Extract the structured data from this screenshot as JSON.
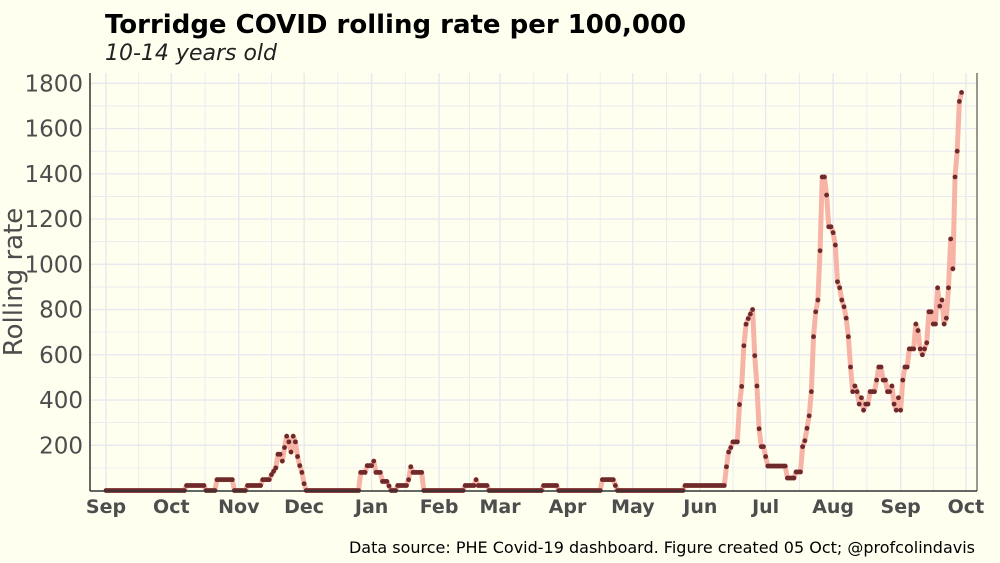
{
  "chart_data": {
    "type": "line",
    "title": "Torridge  COVID rolling rate per 100,000",
    "subtitle": "10-14 years old",
    "xlabel": "",
    "ylabel": "Rolling rate",
    "caption": "Data source: PHE Covid-19 dashboard. Figure created 05 Oct; @profcolindavis",
    "x_unit": "days since 1 Sep 2020",
    "xlim": [
      0,
      400
    ],
    "ylim": [
      0,
      1800
    ],
    "yticks": [
      200,
      400,
      600,
      800,
      1000,
      1200,
      1400,
      1600,
      1800
    ],
    "xticks": [
      {
        "label": "Sep",
        "day": 0
      },
      {
        "label": "Oct",
        "day": 30
      },
      {
        "label": "Nov",
        "day": 61
      },
      {
        "label": "Dec",
        "day": 91
      },
      {
        "label": "Jan",
        "day": 122
      },
      {
        "label": "Feb",
        "day": 153
      },
      {
        "label": "Mar",
        "day": 181
      },
      {
        "label": "Apr",
        "day": 212
      },
      {
        "label": "May",
        "day": 242
      },
      {
        "label": "Jun",
        "day": 273
      },
      {
        "label": "Jul",
        "day": 303
      },
      {
        "label": "Aug",
        "day": 334
      },
      {
        "label": "Sep",
        "day": 365
      },
      {
        "label": "Oct",
        "day": 395
      }
    ],
    "grid": true,
    "colors": {
      "line": "#f7b3a6",
      "point": "#6e2a2a",
      "background": "#fffff0",
      "grid": "#e8e8ef"
    },
    "points": [
      [
        0,
        0
      ],
      [
        36,
        0
      ],
      [
        37,
        22
      ],
      [
        45,
        22
      ],
      [
        46,
        0
      ],
      [
        50,
        0
      ],
      [
        51,
        48
      ],
      [
        58,
        48
      ],
      [
        59,
        0
      ],
      [
        64,
        0
      ],
      [
        65,
        22
      ],
      [
        71,
        22
      ],
      [
        72,
        48
      ],
      [
        75,
        48
      ],
      [
        76,
        70
      ],
      [
        78,
        100
      ],
      [
        79,
        160
      ],
      [
        80,
        160
      ],
      [
        81,
        130
      ],
      [
        82,
        190
      ],
      [
        83,
        240
      ],
      [
        84,
        215
      ],
      [
        85,
        170
      ],
      [
        86,
        240
      ],
      [
        87,
        215
      ],
      [
        88,
        150
      ],
      [
        89,
        110
      ],
      [
        90,
        80
      ],
      [
        91,
        30
      ],
      [
        92,
        0
      ],
      [
        116,
        0
      ],
      [
        117,
        80
      ],
      [
        119,
        80
      ],
      [
        120,
        110
      ],
      [
        122,
        110
      ],
      [
        123,
        130
      ],
      [
        124,
        80
      ],
      [
        126,
        80
      ],
      [
        127,
        40
      ],
      [
        129,
        40
      ],
      [
        130,
        20
      ],
      [
        131,
        0
      ],
      [
        133,
        0
      ],
      [
        134,
        22
      ],
      [
        138,
        22
      ],
      [
        139,
        48
      ],
      [
        140,
        105
      ],
      [
        141,
        80
      ],
      [
        145,
        80
      ],
      [
        146,
        0
      ],
      [
        164,
        0
      ],
      [
        165,
        22
      ],
      [
        169,
        22
      ],
      [
        170,
        48
      ],
      [
        171,
        22
      ],
      [
        175,
        22
      ],
      [
        176,
        0
      ],
      [
        200,
        0
      ],
      [
        201,
        22
      ],
      [
        207,
        22
      ],
      [
        208,
        0
      ],
      [
        227,
        0
      ],
      [
        228,
        48
      ],
      [
        233,
        48
      ],
      [
        234,
        22
      ],
      [
        235,
        0
      ],
      [
        265,
        0
      ],
      [
        266,
        22
      ],
      [
        284,
        22
      ],
      [
        285,
        105
      ],
      [
        286,
        170
      ],
      [
        287,
        190
      ],
      [
        288,
        215
      ],
      [
        290,
        215
      ],
      [
        291,
        380
      ],
      [
        292,
        460
      ],
      [
        293,
        640
      ],
      [
        294,
        735
      ],
      [
        295,
        760
      ],
      [
        296,
        780
      ],
      [
        297,
        800
      ],
      [
        298,
        596
      ],
      [
        299,
        462
      ],
      [
        300,
        273
      ],
      [
        301,
        194
      ],
      [
        302,
        194
      ],
      [
        303,
        150
      ],
      [
        304,
        108
      ],
      [
        312,
        108
      ],
      [
        313,
        55
      ],
      [
        316,
        55
      ],
      [
        317,
        82
      ],
      [
        319,
        82
      ],
      [
        320,
        194
      ],
      [
        321,
        220
      ],
      [
        322,
        275
      ],
      [
        323,
        330
      ],
      [
        324,
        437
      ],
      [
        325,
        680
      ],
      [
        326,
        790
      ],
      [
        327,
        842
      ],
      [
        328,
        1060
      ],
      [
        329,
        1386
      ],
      [
        330,
        1386
      ],
      [
        331,
        1306
      ],
      [
        332,
        1166
      ],
      [
        333,
        1166
      ],
      [
        334,
        1140
      ],
      [
        335,
        1085
      ],
      [
        336,
        923
      ],
      [
        337,
        896
      ],
      [
        338,
        842
      ],
      [
        339,
        812
      ],
      [
        340,
        762
      ],
      [
        341,
        680
      ],
      [
        342,
        546
      ],
      [
        343,
        437
      ],
      [
        344,
        462
      ],
      [
        345,
        437
      ],
      [
        346,
        382
      ],
      [
        347,
        410
      ],
      [
        348,
        355
      ],
      [
        349,
        382
      ],
      [
        350,
        382
      ],
      [
        351,
        437
      ],
      [
        353,
        437
      ],
      [
        354,
        488
      ],
      [
        355,
        546
      ],
      [
        356,
        546
      ],
      [
        357,
        488
      ],
      [
        358,
        488
      ],
      [
        359,
        437
      ],
      [
        360,
        437
      ],
      [
        361,
        462
      ],
      [
        362,
        382
      ],
      [
        363,
        355
      ],
      [
        364,
        410
      ],
      [
        365,
        355
      ],
      [
        366,
        488
      ],
      [
        367,
        546
      ],
      [
        368,
        546
      ],
      [
        369,
        626
      ],
      [
        371,
        626
      ],
      [
        372,
        736
      ],
      [
        373,
        707
      ],
      [
        374,
        626
      ],
      [
        375,
        600
      ],
      [
        376,
        626
      ],
      [
        377,
        653
      ],
      [
        378,
        790
      ],
      [
        379,
        790
      ],
      [
        380,
        736
      ],
      [
        381,
        736
      ],
      [
        382,
        896
      ],
      [
        383,
        815
      ],
      [
        384,
        842
      ],
      [
        385,
        736
      ],
      [
        386,
        762
      ],
      [
        387,
        896
      ],
      [
        388,
        1112
      ],
      [
        389,
        980
      ],
      [
        390,
        1386
      ],
      [
        391,
        1500
      ],
      [
        392,
        1720
      ],
      [
        393,
        1760
      ]
    ]
  }
}
